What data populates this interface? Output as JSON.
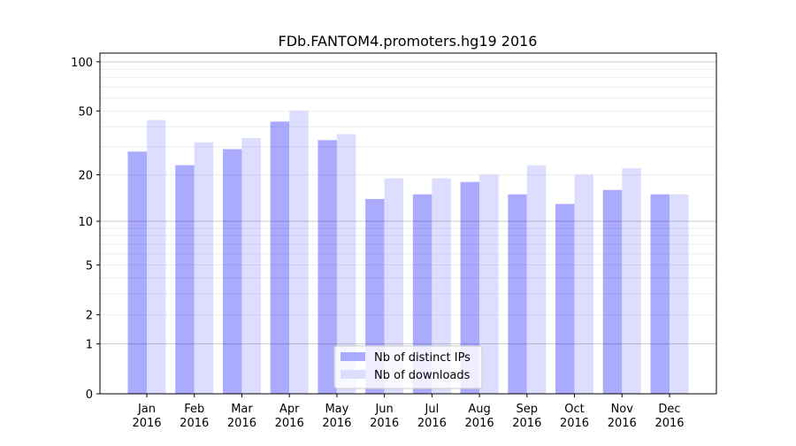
{
  "chart_data": {
    "type": "bar",
    "title": "FDb.FANTOM4.promoters.hg19 2016",
    "xlabel": "",
    "ylabel": "",
    "yscale": "log(1+y)",
    "ylim": [
      0,
      113
    ],
    "yticks": [
      0,
      1,
      2,
      5,
      10,
      20,
      50,
      100
    ],
    "grid": true,
    "legend_position": "bottom-center",
    "categories": [
      [
        "Jan",
        "2016"
      ],
      [
        "Feb",
        "2016"
      ],
      [
        "Mar",
        "2016"
      ],
      [
        "Apr",
        "2016"
      ],
      [
        "May",
        "2016"
      ],
      [
        "Jun",
        "2016"
      ],
      [
        "Jul",
        "2016"
      ],
      [
        "Aug",
        "2016"
      ],
      [
        "Sep",
        "2016"
      ],
      [
        "Oct",
        "2016"
      ],
      [
        "Nov",
        "2016"
      ],
      [
        "Dec",
        "2016"
      ]
    ],
    "series": [
      {
        "name": "Nb of distinct IPs",
        "color": "#aaaaff",
        "values": [
          28,
          23,
          29,
          43,
          33,
          14,
          15,
          18,
          15,
          13,
          16,
          15
        ]
      },
      {
        "name": "Nb of downloads",
        "color": "#ddddff",
        "values": [
          44,
          32,
          34,
          50,
          36,
          19,
          19,
          20,
          23,
          20,
          22,
          15
        ]
      }
    ]
  }
}
